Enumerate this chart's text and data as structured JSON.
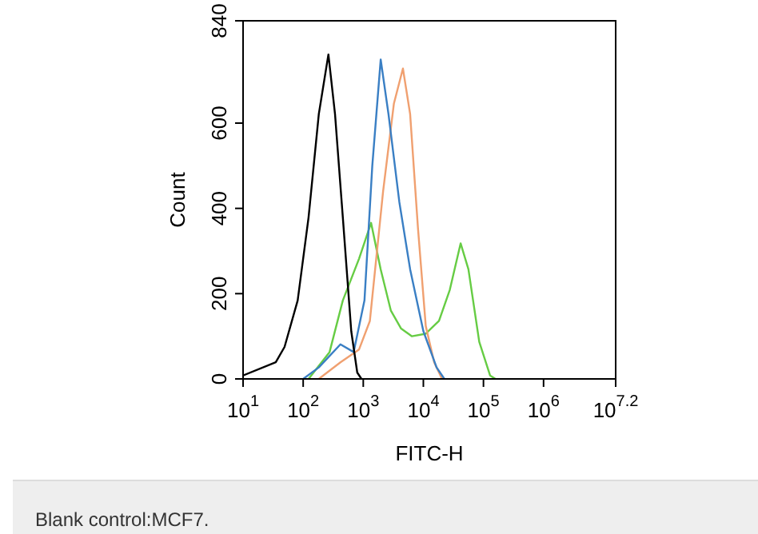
{
  "chart_data": {
    "type": "line",
    "xlabel": "FITC-H",
    "ylabel": "Count",
    "log": "x",
    "xlim": [
      10,
      15848932
    ],
    "xticks": [
      {
        "value": 10,
        "label": "10$^{1}$"
      },
      {
        "value": 100,
        "label": "10$^{2}$"
      },
      {
        "value": 1000,
        "label": "10$^{3}$"
      },
      {
        "value": 10000,
        "label": "10$^{4}$"
      },
      {
        "value": 100000,
        "label": "10$^{5}$"
      },
      {
        "value": 1000000,
        "label": "10$^{6}$"
      },
      {
        "value": 15848932,
        "label": "10$^{7.2}$"
      }
    ],
    "ylim": [
      0,
      840
    ],
    "yticks": [
      0,
      200,
      400,
      600,
      840
    ],
    "grid": false,
    "legend": false,
    "marker": "none",
    "line_style": "solid",
    "series": [
      {
        "color": "#000000",
        "x": [
          10,
          35,
          49,
          81,
          123,
          182,
          263,
          339,
          457,
          631,
          794,
          933
        ],
        "values": [
          8,
          39,
          75,
          184,
          379,
          621,
          761,
          621,
          379,
          112,
          15,
          0
        ]
      },
      {
        "color": "#3a7fc4",
        "x": [
          100,
          182,
          417,
          692,
          1047,
          1413,
          1950,
          2630,
          3981,
          6026,
          10000,
          16596,
          22387
        ],
        "values": [
          0,
          27,
          81,
          63,
          184,
          500,
          749,
          621,
          415,
          257,
          112,
          27,
          0
        ]
      },
      {
        "color": "#f0a070",
        "x": [
          182,
          417,
          851,
          1288,
          2138,
          3236,
          4571,
          6026,
          8128,
          10965,
          15136,
          20417
        ],
        "values": [
          0,
          39,
          69,
          136,
          440,
          646,
          728,
          621,
          354,
          124,
          39,
          0
        ]
      },
      {
        "color": "#66cc44",
        "x": [
          123,
          275,
          457,
          851,
          1349,
          1950,
          2884,
          4266,
          6457,
          10965,
          18197,
          27542,
          41687,
          56234,
          85114,
          128825,
          158489
        ],
        "values": [
          0,
          63,
          184,
          282,
          366,
          257,
          160,
          118,
          100,
          106,
          136,
          209,
          318,
          257,
          87,
          8,
          0
        ]
      }
    ],
    "annotations": [
      "Blank control:MCF7."
    ]
  }
}
